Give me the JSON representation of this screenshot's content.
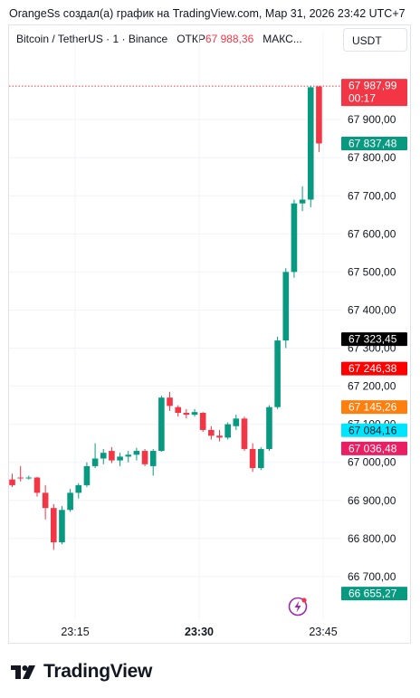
{
  "header": {
    "credit": "OrangeSs создал(а) график на TradingView.com, Мар 31, 2026 23:42 UTC+7"
  },
  "legend": {
    "symbol": "Bitcoin / TetherUS · 1 · Binance",
    "open_label": "ОТКР",
    "open_value": "67 988,36",
    "max_label": "МАКС..."
  },
  "currency_button": "USDT",
  "brand": {
    "name": "TradingView",
    "logo_icon": "tradingview-logo-icon"
  },
  "colors": {
    "up": "#089981",
    "down": "#f23645",
    "grid": "#f0f3fa"
  },
  "chart_data": {
    "type": "candlestick",
    "title": "Bitcoin / TetherUS · 1 · Binance",
    "x_tick_labels": [
      "23:15",
      "23:30",
      "23:45"
    ],
    "y_tick_labels": [
      "66 700,00",
      "66 800,00",
      "66 900,00",
      "67 000,00",
      "67 100,00",
      "67 200,00",
      "67 300,00",
      "67 400,00",
      "67 500,00",
      "67 600,00",
      "67 700,00",
      "67 800,00",
      "67 900,00"
    ],
    "ylim": [
      66645,
      68005
    ],
    "grid": true,
    "candles": [
      {
        "o": 66955,
        "h": 66970,
        "l": 66935,
        "c": 66940
      },
      {
        "o": 66960,
        "h": 66990,
        "l": 66950,
        "c": 66958
      },
      {
        "o": 66960,
        "h": 66965,
        "l": 66955,
        "c": 66960
      },
      {
        "o": 66960,
        "h": 66962,
        "l": 66910,
        "c": 66920
      },
      {
        "o": 66920,
        "h": 66940,
        "l": 66850,
        "c": 66880
      },
      {
        "o": 66880,
        "h": 66890,
        "l": 66770,
        "c": 66790
      },
      {
        "o": 66790,
        "h": 66885,
        "l": 66785,
        "c": 66875
      },
      {
        "o": 66875,
        "h": 66930,
        "l": 66870,
        "c": 66920
      },
      {
        "o": 66920,
        "h": 66945,
        "l": 66905,
        "c": 66940
      },
      {
        "o": 66940,
        "h": 67000,
        "l": 66935,
        "c": 66990
      },
      {
        "o": 66990,
        "h": 67050,
        "l": 66985,
        "c": 67010
      },
      {
        "o": 67010,
        "h": 67035,
        "l": 66995,
        "c": 67025
      },
      {
        "o": 67030,
        "h": 67040,
        "l": 66998,
        "c": 67005
      },
      {
        "o": 67005,
        "h": 67025,
        "l": 66990,
        "c": 67015
      },
      {
        "o": 67015,
        "h": 67030,
        "l": 67000,
        "c": 67020
      },
      {
        "o": 67020,
        "h": 67038,
        "l": 67005,
        "c": 67030
      },
      {
        "o": 67030,
        "h": 67035,
        "l": 66990,
        "c": 66995
      },
      {
        "o": 66990,
        "h": 67035,
        "l": 66965,
        "c": 67030
      },
      {
        "o": 67030,
        "h": 67175,
        "l": 67028,
        "c": 67170
      },
      {
        "o": 67170,
        "h": 67185,
        "l": 67135,
        "c": 67148
      },
      {
        "o": 67145,
        "h": 67150,
        "l": 67120,
        "c": 67130
      },
      {
        "o": 67130,
        "h": 67140,
        "l": 67115,
        "c": 67125
      },
      {
        "o": 67125,
        "h": 67140,
        "l": 67120,
        "c": 67132
      },
      {
        "o": 67130,
        "h": 67132,
        "l": 67080,
        "c": 67085
      },
      {
        "o": 67085,
        "h": 67095,
        "l": 67060,
        "c": 67070
      },
      {
        "o": 67070,
        "h": 67085,
        "l": 67055,
        "c": 67065
      },
      {
        "o": 67065,
        "h": 67105,
        "l": 67060,
        "c": 67100
      },
      {
        "o": 67095,
        "h": 67125,
        "l": 67085,
        "c": 67115
      },
      {
        "o": 67115,
        "h": 67120,
        "l": 67030,
        "c": 67035
      },
      {
        "o": 67035,
        "h": 67050,
        "l": 66975,
        "c": 66985
      },
      {
        "o": 66985,
        "h": 67040,
        "l": 66980,
        "c": 67035
      },
      {
        "o": 67035,
        "h": 67150,
        "l": 67030,
        "c": 67145
      },
      {
        "o": 67145,
        "h": 67330,
        "l": 67140,
        "c": 67320
      },
      {
        "o": 67320,
        "h": 67510,
        "l": 67300,
        "c": 67500
      },
      {
        "o": 67500,
        "h": 67690,
        "l": 67485,
        "c": 67680
      },
      {
        "o": 67680,
        "h": 67725,
        "l": 67660,
        "c": 67690
      },
      {
        "o": 67690,
        "h": 67988,
        "l": 67670,
        "c": 67985
      },
      {
        "o": 67987,
        "h": 67988,
        "l": 67815,
        "c": 67837.48
      }
    ],
    "price_labels": [
      {
        "text": "67 987,99",
        "sub": "00:17",
        "value": 67987.99,
        "color": "#f23645"
      },
      {
        "text": "67 837,48",
        "value": 67837.48,
        "color": "#089981"
      },
      {
        "text": "67 323,45",
        "value": 67323.45,
        "color": "#000000"
      },
      {
        "text": "67 246,38",
        "value": 67246.38,
        "color": "#ff0000"
      },
      {
        "text": "67 145,26",
        "value": 67145.26,
        "color": "#ff7f0e"
      },
      {
        "text": "67 084,16",
        "value": 67084.16,
        "color": "#00e5ff",
        "text_color": "#131722"
      },
      {
        "text": "67 036,48",
        "value": 67036.48,
        "color": "#e91e63"
      },
      {
        "text": "66 655,27",
        "value": 66655.27,
        "color": "#089981"
      }
    ],
    "current_price_line": 67987.99
  }
}
